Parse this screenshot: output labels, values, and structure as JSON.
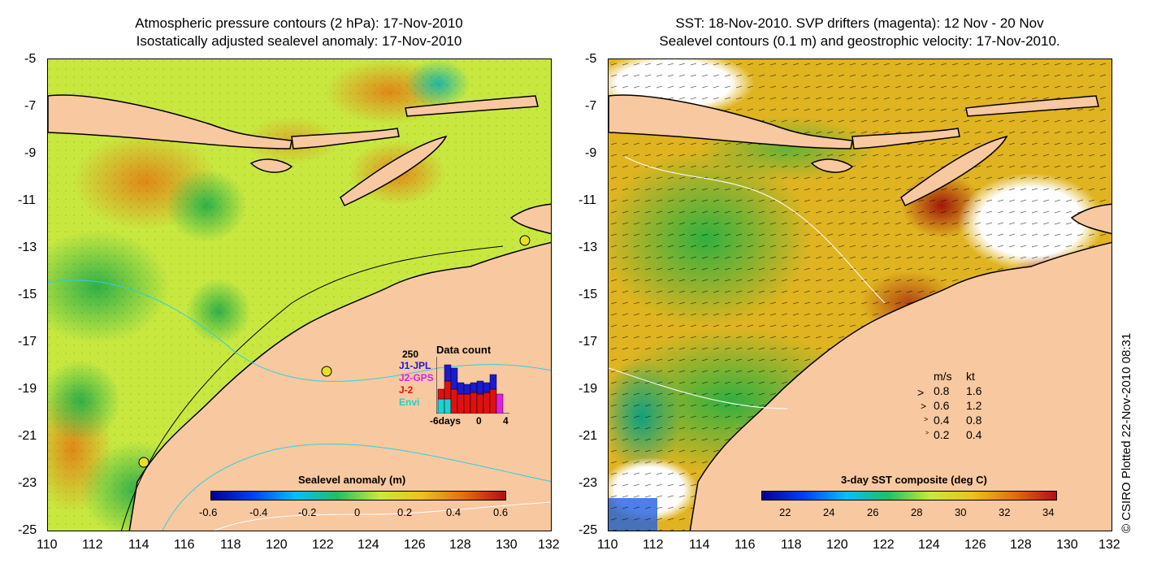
{
  "left_panel": {
    "title_line1": "Atmospheric pressure contours (2 hPa): 17-Nov-2010",
    "title_line2": "Isostatically adjusted sealevel anomaly: 17-Nov-2010",
    "colorbar": {
      "title": "Sealevel anomaly (m)",
      "ticks": [
        "-0.6",
        "-0.4",
        "-0.2",
        "0",
        "0.2",
        "0.4",
        "0.6"
      ],
      "range": [
        -0.6,
        0.6
      ]
    },
    "data_count": {
      "title": "Data count",
      "ymax_label": "250",
      "legend": [
        {
          "label": "J1-JPL",
          "color": "#1a1ad0"
        },
        {
          "label": "J2-GPS",
          "color": "#e020e0"
        },
        {
          "label": "J-2",
          "color": "#e01010"
        },
        {
          "label": "Envi",
          "color": "#20d0d0"
        }
      ],
      "xlabels": [
        "-6days",
        "0",
        "4"
      ]
    }
  },
  "right_panel": {
    "title_line1": "SST: 18-Nov-2010. SVP drifters (magenta): 12 Nov - 20 Nov",
    "title_line2": "Sealevel contours (0.1 m) and geostrophic velocity: 17-Nov-2010.",
    "colorbar": {
      "title": "3-day SST composite (deg C)",
      "ticks": [
        "22",
        "24",
        "26",
        "28",
        "30",
        "32",
        "34"
      ],
      "range": [
        21,
        34.5
      ]
    },
    "speed_legend": {
      "header_ms": "m/s",
      "header_kt": "kt",
      "rows": [
        {
          "ms": "0.8",
          "kt": "1.6"
        },
        {
          "ms": "0.6",
          "kt": "1.2"
        },
        {
          "ms": "0.4",
          "kt": "0.8"
        },
        {
          "ms": "0.2",
          "kt": "0.4"
        }
      ]
    },
    "credit": "© CSIRO Plotted 22-Nov-2010 08:31"
  },
  "axes": {
    "x_ticks": [
      "110",
      "112",
      "114",
      "116",
      "118",
      "120",
      "122",
      "124",
      "126",
      "128",
      "130",
      "132"
    ],
    "y_ticks": [
      "-5",
      "-7",
      "-9",
      "-11",
      "-13",
      "-15",
      "-17",
      "-19",
      "-21",
      "-23",
      "-25"
    ],
    "lon_range": [
      110,
      132
    ],
    "lat_range": [
      -25,
      -5
    ]
  },
  "colors": {
    "land": "#f8c8a0",
    "ocean_base_left": "#c8e840",
    "ocean_base_right": "#e8c020",
    "no_data": "#ffffff"
  }
}
